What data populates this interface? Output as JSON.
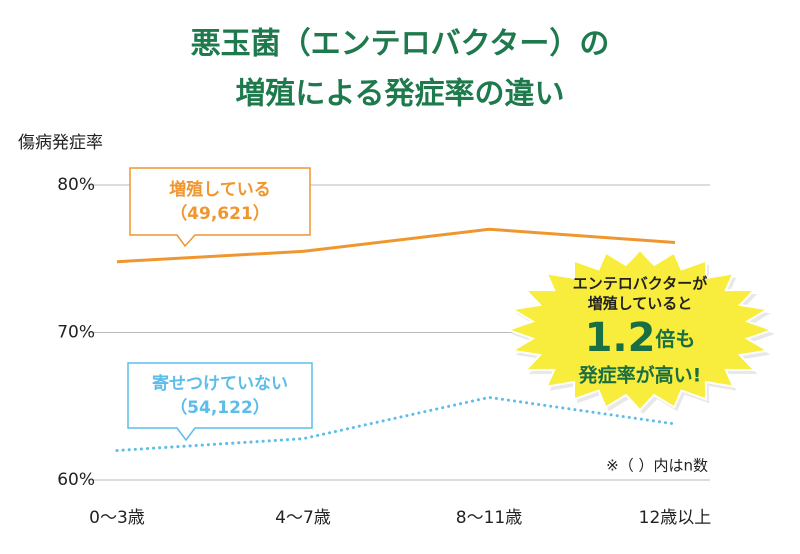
{
  "chart_data": {
    "type": "line",
    "title": [
      "悪玉菌（エンテロバクター）の",
      "増殖による発症率の違い"
    ],
    "y_label": "傷病発症率",
    "categories": [
      "0〜3歳",
      "4〜7歳",
      "8〜11歳",
      "12歳以上"
    ],
    "series": [
      {
        "name": "増殖している",
        "n_label": "（49,621）",
        "color": "#f0962e",
        "style": "solid",
        "values": [
          74.8,
          75.5,
          77.0,
          76.1
        ]
      },
      {
        "name": "寄せつけていない",
        "n_label": "（54,122）",
        "color": "#5bbde8",
        "style": "dotted",
        "values": [
          62.0,
          62.8,
          65.6,
          63.8
        ]
      }
    ],
    "ylim": [
      60,
      80
    ],
    "yticks": [
      {
        "value": 60,
        "label": "60%"
      },
      {
        "value": 70,
        "label": "70%"
      },
      {
        "value": 80,
        "label": "80%"
      }
    ],
    "grid": true,
    "annotation": {
      "lines": [
        "エンテロバクターが",
        "増殖していると"
      ],
      "ratio": 1.2,
      "ratio_suffix": "倍も",
      "last": "発症率が高い!"
    },
    "note": "※（ ）内はn数"
  }
}
